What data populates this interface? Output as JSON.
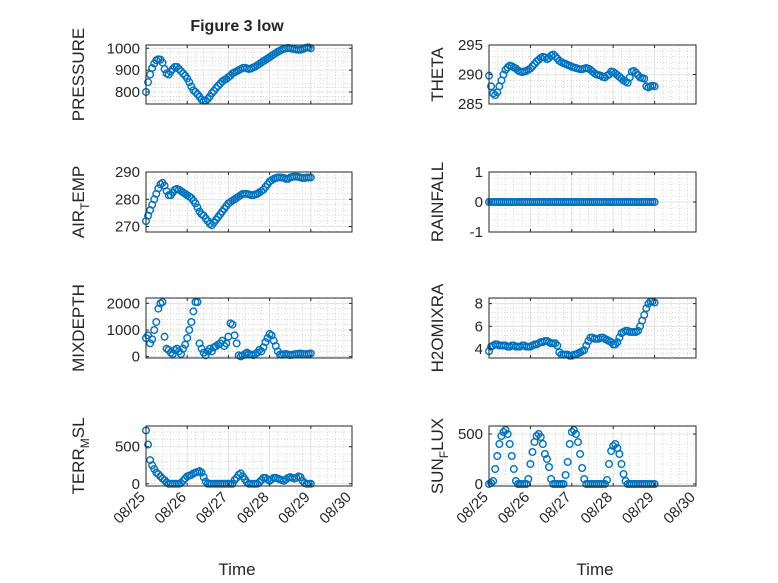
{
  "figure_title": "Figure 3 low",
  "x_axis_label": "Time",
  "x_tick_labels": [
    "08/25",
    "08/26",
    "08/27",
    "08/28",
    "08/29",
    "08/30"
  ],
  "marker_color": "#0072BD",
  "chart_data": [
    {
      "type": "scatter",
      "marker": "circle",
      "grid": true,
      "ylabel": "PRESSURE",
      "ylim": [
        745,
        1015
      ],
      "yticks": [
        800,
        900,
        1000
      ],
      "x": [
        0.0,
        0.05,
        0.1,
        0.15,
        0.2,
        0.25,
        0.3,
        0.35,
        0.4,
        0.45,
        0.5,
        0.55,
        0.6,
        0.65,
        0.7,
        0.75,
        0.8,
        0.85,
        0.9,
        0.95,
        1.0,
        1.05,
        1.1,
        1.15,
        1.2,
        1.25,
        1.3,
        1.35,
        1.4,
        1.45,
        1.5,
        1.55,
        1.6,
        1.65,
        1.7,
        1.75,
        1.8,
        1.85,
        1.9,
        1.95,
        2.0,
        2.05,
        2.1,
        2.15,
        2.2,
        2.25,
        2.3,
        2.35,
        2.4,
        2.45,
        2.5,
        2.55,
        2.6,
        2.65,
        2.7,
        2.75,
        2.8,
        2.85,
        2.9,
        2.95,
        3.0,
        3.05,
        3.1,
        3.15,
        3.2,
        3.25,
        3.3,
        3.35,
        3.4,
        3.45,
        3.5,
        3.55,
        3.6,
        3.65,
        3.7,
        3.75,
        3.8,
        3.85,
        3.9,
        3.95,
        4.0
      ],
      "y": [
        800,
        845,
        880,
        910,
        930,
        945,
        950,
        948,
        935,
        905,
        885,
        880,
        893,
        905,
        915,
        915,
        905,
        895,
        885,
        875,
        862,
        845,
        825,
        808,
        800,
        790,
        778,
        765,
        760,
        760,
        768,
        780,
        795,
        805,
        818,
        828,
        838,
        848,
        855,
        860,
        868,
        875,
        885,
        890,
        895,
        900,
        905,
        910,
        911,
        908,
        905,
        908,
        912,
        916,
        922,
        928,
        935,
        941,
        947,
        953,
        959,
        966,
        972,
        978,
        984,
        989,
        994,
        997,
        1000,
        1002,
        1000,
        998,
        996,
        994,
        993,
        993,
        996,
        1000,
        1003,
        1004,
        1000
      ]
    },
    {
      "type": "scatter",
      "marker": "circle",
      "grid": true,
      "ylabel": "THETA",
      "ylim": [
        285,
        295
      ],
      "yticks": [
        285,
        290,
        295
      ],
      "x": [
        0.0,
        0.05,
        0.1,
        0.15,
        0.2,
        0.25,
        0.3,
        0.35,
        0.4,
        0.45,
        0.5,
        0.55,
        0.6,
        0.65,
        0.7,
        0.75,
        0.8,
        0.85,
        0.9,
        0.95,
        1.0,
        1.05,
        1.1,
        1.15,
        1.2,
        1.25,
        1.3,
        1.35,
        1.4,
        1.45,
        1.5,
        1.55,
        1.6,
        1.65,
        1.7,
        1.75,
        1.8,
        1.85,
        1.9,
        1.95,
        2.0,
        2.05,
        2.1,
        2.15,
        2.2,
        2.25,
        2.3,
        2.35,
        2.4,
        2.45,
        2.5,
        2.55,
        2.6,
        2.65,
        2.7,
        2.75,
        2.8,
        2.85,
        2.9,
        2.95,
        3.0,
        3.05,
        3.1,
        3.15,
        3.2,
        3.25,
        3.3,
        3.35,
        3.4,
        3.45,
        3.5,
        3.55,
        3.6,
        3.65,
        3.7,
        3.75,
        3.8,
        3.85,
        3.9,
        3.95,
        4.0
      ],
      "y": [
        289.8,
        288.0,
        286.8,
        286.5,
        287.0,
        288.0,
        289.0,
        290.0,
        290.8,
        291.2,
        291.5,
        291.4,
        291.2,
        291.0,
        290.7,
        290.5,
        290.4,
        290.5,
        290.6,
        290.8,
        291.0,
        291.4,
        291.8,
        292.2,
        292.5,
        292.8,
        293.0,
        292.9,
        292.6,
        292.8,
        293.2,
        293.4,
        293.1,
        292.7,
        292.3,
        292.1,
        291.9,
        291.8,
        291.6,
        291.5,
        291.3,
        291.2,
        291.1,
        291.0,
        290.9,
        290.9,
        291.0,
        291.1,
        291.0,
        290.8,
        290.5,
        290.2,
        290.0,
        289.9,
        289.8,
        289.6,
        289.5,
        289.8,
        290.0,
        290.5,
        290.4,
        290.2,
        289.9,
        289.6,
        289.3,
        289.0,
        288.8,
        288.6,
        289.5,
        290.5,
        290.6,
        290.3,
        289.9,
        289.5,
        289.4,
        289.3,
        288.0,
        287.8,
        288.0,
        288.1,
        288.0
      ]
    },
    {
      "type": "scatter",
      "marker": "circle",
      "grid": true,
      "ylabel": "AIR_TEMP",
      "ylim": [
        268,
        290
      ],
      "yticks": [
        270,
        280,
        290
      ],
      "x": [
        0.0,
        0.05,
        0.1,
        0.15,
        0.2,
        0.25,
        0.3,
        0.35,
        0.4,
        0.45,
        0.5,
        0.55,
        0.6,
        0.65,
        0.7,
        0.75,
        0.8,
        0.85,
        0.9,
        0.95,
        1.0,
        1.05,
        1.1,
        1.15,
        1.2,
        1.25,
        1.3,
        1.35,
        1.4,
        1.45,
        1.5,
        1.55,
        1.6,
        1.65,
        1.7,
        1.75,
        1.8,
        1.85,
        1.9,
        1.95,
        2.0,
        2.05,
        2.1,
        2.15,
        2.2,
        2.25,
        2.3,
        2.35,
        2.4,
        2.45,
        2.5,
        2.55,
        2.6,
        2.65,
        2.7,
        2.75,
        2.8,
        2.85,
        2.9,
        2.95,
        3.0,
        3.05,
        3.1,
        3.15,
        3.2,
        3.25,
        3.3,
        3.35,
        3.4,
        3.45,
        3.5,
        3.55,
        3.6,
        3.65,
        3.7,
        3.75,
        3.8,
        3.85,
        3.9,
        3.95,
        4.0
      ],
      "y": [
        272.0,
        274.0,
        276.0,
        278.0,
        280.0,
        282.0,
        284.0,
        285.5,
        286.0,
        285.0,
        283.0,
        281.5,
        281.5,
        282.5,
        283.5,
        283.8,
        283.5,
        283.0,
        282.5,
        282.0,
        281.5,
        281.0,
        280.5,
        279.5,
        278.5,
        277.0,
        275.5,
        274.5,
        274.0,
        273.0,
        272.0,
        271.0,
        270.5,
        271.5,
        272.5,
        273.5,
        274.5,
        275.5,
        276.5,
        277.5,
        278.5,
        279.0,
        279.5,
        280.0,
        280.5,
        281.0,
        281.5,
        282.0,
        282.0,
        282.0,
        281.8,
        281.5,
        281.5,
        281.8,
        282.0,
        282.5,
        283.0,
        283.5,
        284.5,
        285.5,
        286.5,
        287.0,
        287.5,
        287.8,
        288.0,
        288.0,
        288.0,
        287.8,
        287.5,
        287.5,
        288.0,
        288.2,
        288.3,
        288.3,
        288.2,
        288.0,
        287.8,
        287.8,
        288.0,
        288.0,
        288.0
      ]
    },
    {
      "type": "scatter",
      "marker": "circle",
      "grid": true,
      "ylabel": "RAINFALL",
      "ylim": [
        -1,
        1
      ],
      "yticks": [
        -1,
        0,
        1
      ],
      "x": [
        0.0,
        0.05,
        0.1,
        0.15,
        0.2,
        0.25,
        0.3,
        0.35,
        0.4,
        0.45,
        0.5,
        0.55,
        0.6,
        0.65,
        0.7,
        0.75,
        0.8,
        0.85,
        0.9,
        0.95,
        1.0,
        1.05,
        1.1,
        1.15,
        1.2,
        1.25,
        1.3,
        1.35,
        1.4,
        1.45,
        1.5,
        1.55,
        1.6,
        1.65,
        1.7,
        1.75,
        1.8,
        1.85,
        1.9,
        1.95,
        2.0,
        2.05,
        2.1,
        2.15,
        2.2,
        2.25,
        2.3,
        2.35,
        2.4,
        2.45,
        2.5,
        2.55,
        2.6,
        2.65,
        2.7,
        2.75,
        2.8,
        2.85,
        2.9,
        2.95,
        3.0,
        3.05,
        3.1,
        3.15,
        3.2,
        3.25,
        3.3,
        3.35,
        3.4,
        3.45,
        3.5,
        3.55,
        3.6,
        3.65,
        3.7,
        3.75,
        3.8,
        3.85,
        3.9,
        3.95,
        4.0
      ],
      "y": [
        0,
        0,
        0,
        0,
        0,
        0,
        0,
        0,
        0,
        0,
        0,
        0,
        0,
        0,
        0,
        0,
        0,
        0,
        0,
        0,
        0,
        0,
        0,
        0,
        0,
        0,
        0,
        0,
        0,
        0,
        0,
        0,
        0,
        0,
        0,
        0,
        0,
        0,
        0,
        0,
        0,
        0,
        0,
        0,
        0,
        0,
        0,
        0,
        0,
        0,
        0,
        0,
        0,
        0,
        0,
        0,
        0,
        0,
        0,
        0,
        0,
        0,
        0,
        0,
        0,
        0,
        0,
        0,
        0,
        0,
        0,
        0,
        0,
        0,
        0,
        0,
        0,
        0,
        0,
        0,
        0
      ]
    },
    {
      "type": "scatter",
      "marker": "circle",
      "grid": true,
      "ylabel": "MIXDEPTH",
      "ylim": [
        -50,
        2200
      ],
      "yticks": [
        0,
        1000,
        2000
      ],
      "x": [
        0.0,
        0.05,
        0.1,
        0.15,
        0.2,
        0.25,
        0.3,
        0.35,
        0.4,
        0.45,
        0.5,
        0.55,
        0.6,
        0.65,
        0.7,
        0.75,
        0.8,
        0.85,
        0.9,
        0.95,
        1.0,
        1.05,
        1.1,
        1.15,
        1.2,
        1.25,
        1.3,
        1.35,
        1.4,
        1.45,
        1.5,
        1.55,
        1.6,
        1.65,
        1.7,
        1.75,
        1.8,
        1.85,
        1.9,
        1.95,
        2.0,
        2.05,
        2.1,
        2.15,
        2.2,
        2.25,
        2.3,
        2.35,
        2.4,
        2.45,
        2.5,
        2.55,
        2.6,
        2.65,
        2.7,
        2.75,
        2.8,
        2.85,
        2.9,
        2.95,
        3.0,
        3.05,
        3.1,
        3.15,
        3.2,
        3.25,
        3.3,
        3.35,
        3.4,
        3.45,
        3.5,
        3.55,
        3.6,
        3.65,
        3.7,
        3.75,
        3.8,
        3.85,
        3.9,
        3.95,
        4.0
      ],
      "y": [
        700,
        800,
        500,
        650,
        1000,
        1300,
        1800,
        2000,
        2050,
        750,
        300,
        250,
        150,
        100,
        250,
        300,
        200,
        100,
        300,
        450,
        700,
        1000,
        1300,
        1700,
        2050,
        2050,
        500,
        300,
        150,
        50,
        200,
        300,
        200,
        350,
        400,
        450,
        500,
        600,
        400,
        500,
        750,
        1250,
        1200,
        800,
        500,
        50,
        10,
        50,
        100,
        150,
        100,
        80,
        60,
        100,
        150,
        250,
        200,
        350,
        550,
        700,
        850,
        800,
        600,
        400,
        200,
        80,
        70,
        90,
        100,
        80,
        60,
        70,
        90,
        100,
        110,
        120,
        100,
        90,
        100,
        110,
        120
      ]
    },
    {
      "type": "scatter",
      "marker": "circle",
      "grid": true,
      "ylabel": "H2OMIXRA",
      "ylim": [
        3.2,
        8.5
      ],
      "yticks": [
        4,
        6,
        8
      ],
      "x": [
        0.0,
        0.05,
        0.1,
        0.15,
        0.2,
        0.25,
        0.3,
        0.35,
        0.4,
        0.45,
        0.5,
        0.55,
        0.6,
        0.65,
        0.7,
        0.75,
        0.8,
        0.85,
        0.9,
        0.95,
        1.0,
        1.05,
        1.1,
        1.15,
        1.2,
        1.25,
        1.3,
        1.35,
        1.4,
        1.45,
        1.5,
        1.55,
        1.6,
        1.65,
        1.7,
        1.75,
        1.8,
        1.85,
        1.9,
        1.95,
        2.0,
        2.05,
        2.1,
        2.15,
        2.2,
        2.25,
        2.3,
        2.35,
        2.4,
        2.45,
        2.5,
        2.55,
        2.6,
        2.65,
        2.7,
        2.75,
        2.8,
        2.85,
        2.9,
        2.95,
        3.0,
        3.05,
        3.1,
        3.15,
        3.2,
        3.25,
        3.3,
        3.35,
        3.4,
        3.45,
        3.5,
        3.55,
        3.6,
        3.65,
        3.7,
        3.75,
        3.8,
        3.85,
        3.9,
        3.95,
        4.0
      ],
      "y": [
        3.8,
        4.2,
        4.3,
        4.4,
        4.4,
        4.3,
        4.3,
        4.3,
        4.3,
        4.2,
        4.2,
        4.3,
        4.3,
        4.2,
        4.2,
        4.2,
        4.3,
        4.3,
        4.2,
        4.2,
        4.2,
        4.3,
        4.4,
        4.4,
        4.5,
        4.6,
        4.6,
        4.7,
        4.7,
        4.6,
        4.5,
        4.5,
        4.5,
        4.3,
        3.7,
        3.5,
        3.5,
        3.5,
        3.5,
        3.4,
        3.4,
        3.5,
        3.5,
        3.6,
        3.7,
        3.8,
        3.9,
        4.3,
        4.7,
        5.0,
        5.0,
        4.9,
        4.9,
        4.9,
        5.0,
        5.0,
        4.9,
        4.8,
        4.7,
        4.6,
        4.4,
        4.4,
        4.6,
        5.0,
        5.4,
        5.5,
        5.6,
        5.6,
        5.5,
        5.5,
        5.5,
        5.5,
        5.6,
        6.0,
        6.5,
        7.0,
        7.6,
        8.0,
        8.2,
        8.2,
        8.1
      ]
    },
    {
      "type": "scatter",
      "marker": "circle",
      "grid": true,
      "ylabel": "TERR_MSL",
      "ylim": [
        -30,
        780
      ],
      "yticks": [
        0,
        500
      ],
      "x": [
        0.0,
        0.05,
        0.1,
        0.15,
        0.2,
        0.25,
        0.3,
        0.35,
        0.4,
        0.45,
        0.5,
        0.55,
        0.6,
        0.65,
        0.7,
        0.75,
        0.8,
        0.85,
        0.9,
        0.95,
        1.0,
        1.05,
        1.1,
        1.15,
        1.2,
        1.25,
        1.3,
        1.35,
        1.4,
        1.45,
        1.5,
        1.55,
        1.6,
        1.65,
        1.7,
        1.75,
        1.8,
        1.85,
        1.9,
        1.95,
        2.0,
        2.05,
        2.1,
        2.15,
        2.2,
        2.25,
        2.3,
        2.35,
        2.4,
        2.45,
        2.5,
        2.55,
        2.6,
        2.65,
        2.7,
        2.75,
        2.8,
        2.85,
        2.9,
        2.95,
        3.0,
        3.05,
        3.1,
        3.15,
        3.2,
        3.25,
        3.3,
        3.35,
        3.4,
        3.45,
        3.5,
        3.55,
        3.6,
        3.65,
        3.7,
        3.75,
        3.8,
        3.85,
        3.9,
        3.95,
        4.0
      ],
      "y": [
        720,
        530,
        320,
        250,
        200,
        150,
        130,
        100,
        70,
        50,
        20,
        0,
        0,
        0,
        0,
        0,
        0,
        10,
        40,
        70,
        100,
        110,
        120,
        140,
        150,
        160,
        170,
        150,
        90,
        30,
        0,
        0,
        0,
        0,
        0,
        0,
        0,
        0,
        0,
        0,
        0,
        0,
        0,
        50,
        80,
        120,
        140,
        100,
        60,
        20,
        0,
        0,
        0,
        0,
        0,
        20,
        50,
        80,
        80,
        60,
        40,
        60,
        80,
        80,
        70,
        60,
        50,
        40,
        60,
        80,
        90,
        80,
        70,
        80,
        100,
        90,
        40,
        10,
        0,
        0,
        0
      ]
    },
    {
      "type": "scatter",
      "marker": "circle",
      "grid": true,
      "ylabel": "SUN_FLUX",
      "ylim": [
        -20,
        580
      ],
      "yticks": [
        0,
        500
      ],
      "x": [
        0.0,
        0.05,
        0.1,
        0.15,
        0.2,
        0.25,
        0.3,
        0.35,
        0.4,
        0.45,
        0.5,
        0.55,
        0.6,
        0.65,
        0.7,
        0.75,
        0.8,
        0.85,
        0.9,
        0.95,
        1.0,
        1.05,
        1.1,
        1.15,
        1.2,
        1.25,
        1.3,
        1.35,
        1.4,
        1.45,
        1.5,
        1.55,
        1.6,
        1.65,
        1.7,
        1.75,
        1.8,
        1.85,
        1.9,
        1.95,
        2.0,
        2.05,
        2.1,
        2.15,
        2.2,
        2.25,
        2.3,
        2.35,
        2.4,
        2.45,
        2.5,
        2.55,
        2.6,
        2.65,
        2.7,
        2.75,
        2.8,
        2.85,
        2.9,
        2.95,
        3.0,
        3.05,
        3.1,
        3.15,
        3.2,
        3.25,
        3.3,
        3.35,
        3.4,
        3.45,
        3.5,
        3.55,
        3.6,
        3.65,
        3.7,
        3.75,
        3.8,
        3.85,
        3.9,
        3.95,
        4.0
      ],
      "y": [
        0,
        10,
        30,
        150,
        280,
        400,
        480,
        520,
        540,
        500,
        400,
        280,
        150,
        30,
        0,
        0,
        0,
        0,
        0,
        50,
        200,
        320,
        420,
        480,
        500,
        470,
        400,
        300,
        250,
        170,
        50,
        0,
        0,
        0,
        0,
        0,
        0,
        90,
        220,
        400,
        520,
        540,
        500,
        420,
        300,
        160,
        50,
        0,
        0,
        0,
        0,
        0,
        0,
        0,
        0,
        0,
        0,
        40,
        200,
        330,
        380,
        400,
        360,
        300,
        200,
        100,
        30,
        0,
        0,
        0,
        0,
        0,
        0,
        0,
        0,
        0,
        0,
        0,
        0,
        0,
        0
      ]
    }
  ]
}
